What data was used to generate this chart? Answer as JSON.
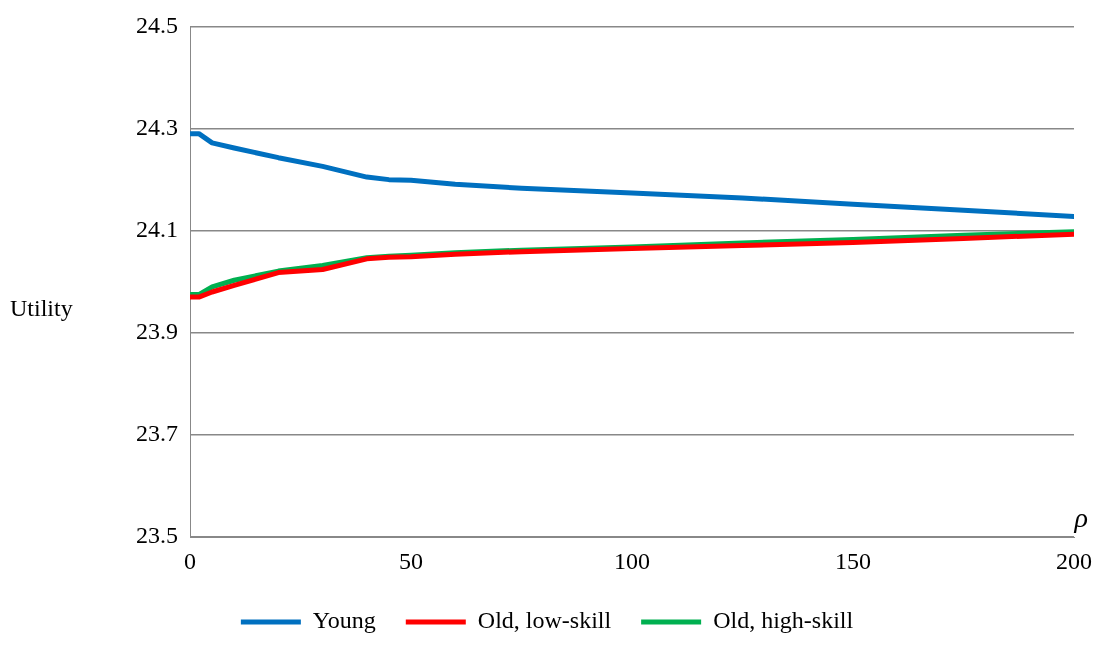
{
  "chart_data": {
    "type": "line",
    "xlabel": "ρ",
    "ylabel": "Utility",
    "xlim": [
      0,
      200
    ],
    "xticks": [
      0,
      50,
      100,
      150,
      200
    ],
    "ylim": [
      23.5,
      24.5
    ],
    "yticks": [
      23.5,
      23.7,
      23.9,
      24.1,
      24.3,
      24.5
    ],
    "grid": "y",
    "legend": "bottom",
    "marker": "none",
    "line_style": "solid",
    "x": [
      0,
      2,
      5,
      10,
      20,
      30,
      40,
      45,
      50,
      60,
      75,
      100,
      125,
      150,
      175,
      200
    ],
    "series": [
      {
        "name": "Young",
        "color": "#0070c0",
        "values": [
          24.29,
          24.29,
          24.272,
          24.262,
          24.243,
          24.226,
          24.205,
          24.2,
          24.199,
          24.191,
          24.183,
          24.174,
          24.164,
          24.152,
          24.14,
          24.128
        ]
      },
      {
        "name": "Old, low-skill",
        "color": "#ff0000",
        "values": [
          23.97,
          23.97,
          23.98,
          23.993,
          24.018,
          24.024,
          24.045,
          24.048,
          24.049,
          24.054,
          24.059,
          24.065,
          24.071,
          24.077,
          24.085,
          24.093
        ]
      },
      {
        "name": "Old, high-skill",
        "color": "#00b050",
        "values": [
          23.975,
          23.975,
          23.99,
          24.003,
          24.021,
          24.032,
          24.047,
          24.05,
          24.052,
          24.057,
          24.062,
          24.068,
          24.076,
          24.083,
          24.091,
          24.098
        ]
      }
    ]
  }
}
